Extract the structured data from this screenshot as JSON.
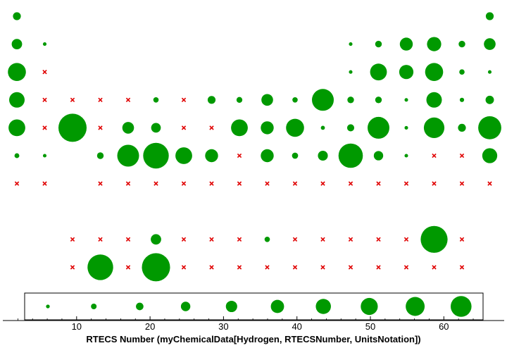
{
  "chart_data": {
    "type": "scatter",
    "encoding": "periodic-table bubble chart: green disc area ~ RTECS count, red x = no data",
    "title": "",
    "xlabel": "RTECS Number (myChemicalData[Hydrogen, RTECSNumber, UnitsNotation])",
    "ylabel": "",
    "xlim": [
      0,
      64
    ],
    "x_ticks": [
      10,
      20,
      30,
      40,
      50,
      60
    ],
    "colors": {
      "present": "#009900",
      "missing": "#e00000"
    },
    "legend": {
      "position": "bottom",
      "values": [
        1,
        2,
        3,
        4,
        5,
        6,
        7,
        8,
        9,
        10
      ]
    },
    "grid": [
      [
        2,
        null,
        null,
        null,
        null,
        null,
        null,
        null,
        null,
        null,
        null,
        null,
        null,
        null,
        null,
        null,
        null,
        2
      ],
      [
        3,
        0.3,
        null,
        null,
        null,
        null,
        null,
        null,
        null,
        null,
        null,
        null,
        0.3,
        1.5,
        4,
        4.5,
        1.5,
        3.5
      ],
      [
        6,
        0,
        null,
        null,
        null,
        null,
        null,
        null,
        null,
        null,
        null,
        null,
        0.3,
        5.5,
        4.5,
        6,
        1,
        0.3
      ],
      [
        5,
        0,
        0,
        0,
        0,
        1,
        0,
        2,
        1.2,
        3.5,
        1,
        7.5,
        1.5,
        1.5,
        0.3,
        5,
        0.6,
        2.2
      ],
      [
        5.5,
        0,
        10,
        0,
        3.5,
        2.7,
        0,
        0,
        5.5,
        4,
        6,
        0.5,
        1.7,
        7.5,
        0.3,
        7,
        2,
        8
      ],
      [
        0.8,
        0.3,
        null,
        1.5,
        7.5,
        9,
        5.5,
        4,
        0,
        4,
        1.3,
        2.8,
        8.5,
        2.6,
        0.3,
        0,
        0,
        4.8
      ],
      [
        0,
        0,
        null,
        0,
        0,
        0,
        0,
        0,
        0,
        0,
        0,
        0,
        0,
        0,
        0,
        0,
        0,
        0
      ],
      [
        null,
        null,
        null,
        null,
        null,
        null,
        null,
        null,
        null,
        null,
        null,
        null,
        null,
        null,
        null,
        null,
        null,
        null
      ],
      [
        null,
        null,
        0,
        0,
        0,
        3,
        0,
        0,
        0,
        1,
        0,
        0,
        0,
        0,
        0,
        9.5,
        0,
        null
      ],
      [
        null,
        null,
        0,
        9,
        0,
        10,
        0,
        0,
        0,
        0,
        0,
        0,
        0,
        0,
        0,
        0,
        0,
        null
      ]
    ]
  }
}
